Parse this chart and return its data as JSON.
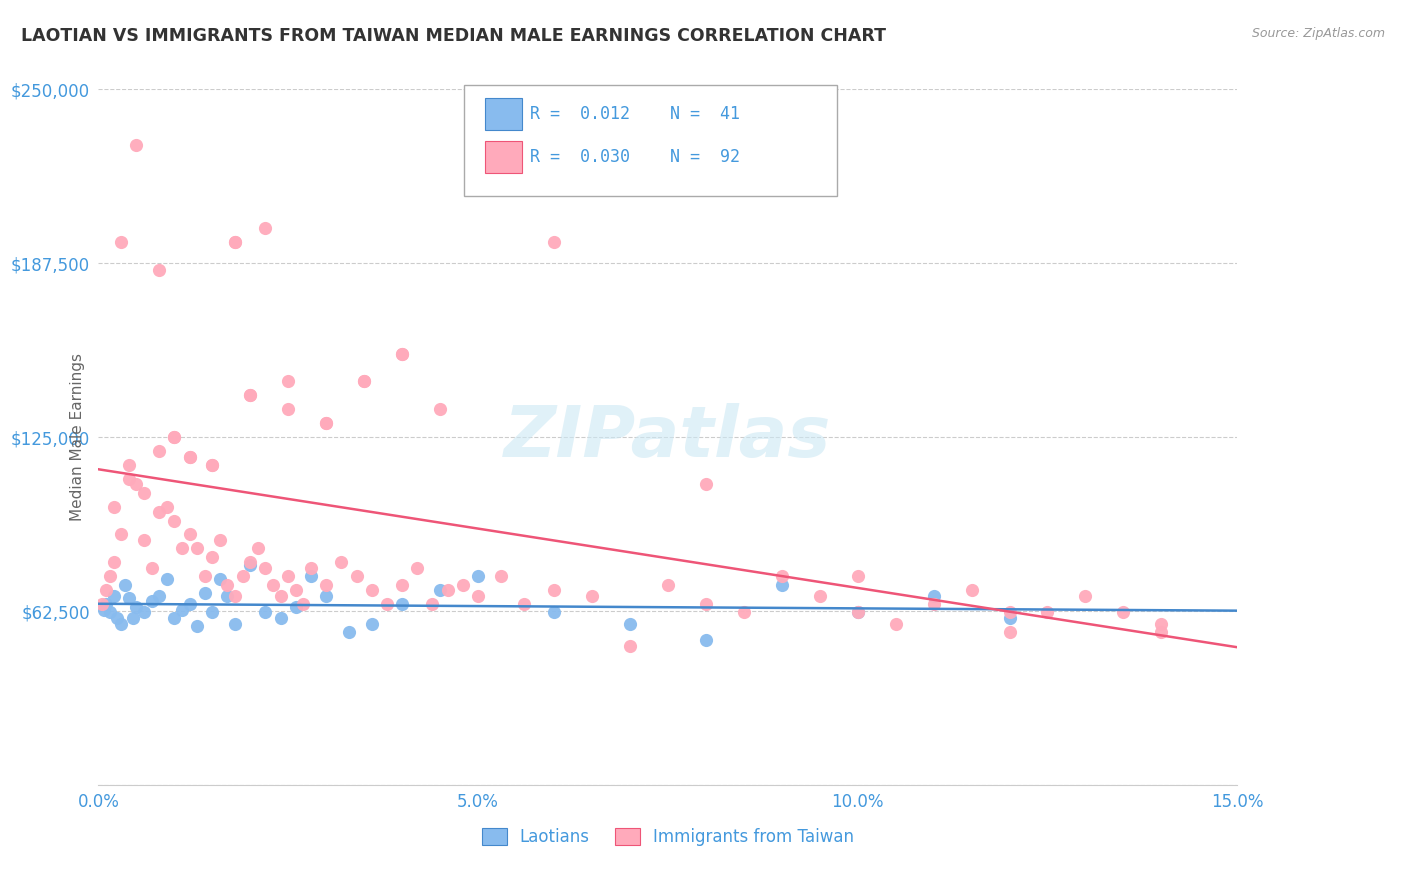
{
  "title": "LAOTIAN VS IMMIGRANTS FROM TAIWAN MEDIAN MALE EARNINGS CORRELATION CHART",
  "source": "Source: ZipAtlas.com",
  "ylabel": "Median Male Earnings",
  "xlim": [
    0.0,
    0.15
  ],
  "ylim": [
    0,
    250000
  ],
  "yticks": [
    0,
    62500,
    125000,
    187500,
    250000
  ],
  "ytick_labels": [
    "",
    "$62,500",
    "$125,000",
    "$187,500",
    "$250,000"
  ],
  "xticks": [
    0.0,
    0.05,
    0.1,
    0.15
  ],
  "xtick_labels": [
    "0.0%",
    "5.0%",
    "10.0%",
    "15.0%"
  ],
  "bg_color": "#ffffff",
  "grid_color": "#cccccc",
  "series": [
    {
      "name": "Laotians",
      "R": 0.012,
      "N": 41,
      "dot_color": "#88bbee",
      "line_color": "#4488cc",
      "scatter_x": [
        0.0008,
        0.001,
        0.0015,
        0.002,
        0.0025,
        0.003,
        0.0035,
        0.004,
        0.0045,
        0.005,
        0.006,
        0.007,
        0.008,
        0.009,
        0.01,
        0.011,
        0.012,
        0.013,
        0.014,
        0.015,
        0.016,
        0.017,
        0.018,
        0.02,
        0.022,
        0.024,
        0.026,
        0.028,
        0.03,
        0.033,
        0.036,
        0.04,
        0.045,
        0.05,
        0.06,
        0.07,
        0.08,
        0.09,
        0.1,
        0.11,
        0.12
      ],
      "scatter_y": [
        63000,
        65000,
        62000,
        68000,
        60000,
        58000,
        72000,
        67000,
        60000,
        64000,
        62000,
        66000,
        68000,
        74000,
        60000,
        63000,
        65000,
        57000,
        69000,
        62000,
        74000,
        68000,
        58000,
        79000,
        62000,
        60000,
        64000,
        75000,
        68000,
        55000,
        58000,
        65000,
        70000,
        75000,
        62000,
        58000,
        52000,
        72000,
        62000,
        68000,
        60000
      ]
    },
    {
      "name": "Immigrants from Taiwan",
      "R": 0.03,
      "N": 92,
      "dot_color": "#ffaabb",
      "line_color": "#ee5577",
      "scatter_x": [
        0.0005,
        0.001,
        0.0015,
        0.002,
        0.003,
        0.004,
        0.005,
        0.006,
        0.007,
        0.008,
        0.009,
        0.01,
        0.011,
        0.012,
        0.013,
        0.014,
        0.015,
        0.016,
        0.017,
        0.018,
        0.019,
        0.02,
        0.021,
        0.022,
        0.023,
        0.024,
        0.025,
        0.026,
        0.027,
        0.028,
        0.03,
        0.032,
        0.034,
        0.036,
        0.038,
        0.04,
        0.042,
        0.044,
        0.046,
        0.048,
        0.05,
        0.053,
        0.056,
        0.06,
        0.065,
        0.07,
        0.075,
        0.08,
        0.085,
        0.09,
        0.095,
        0.1,
        0.105,
        0.11,
        0.115,
        0.12,
        0.125,
        0.13,
        0.135,
        0.14,
        0.003,
        0.005,
        0.008,
        0.01,
        0.012,
        0.015,
        0.018,
        0.02,
        0.025,
        0.03,
        0.035,
        0.04,
        0.045,
        0.002,
        0.004,
        0.006,
        0.008,
        0.01,
        0.012,
        0.015,
        0.018,
        0.02,
        0.022,
        0.025,
        0.03,
        0.035,
        0.04,
        0.06,
        0.08,
        0.1,
        0.12,
        0.14
      ],
      "scatter_y": [
        65000,
        70000,
        75000,
        80000,
        90000,
        110000,
        108000,
        88000,
        78000,
        98000,
        100000,
        95000,
        85000,
        90000,
        85000,
        75000,
        82000,
        88000,
        72000,
        68000,
        75000,
        80000,
        85000,
        78000,
        72000,
        68000,
        75000,
        70000,
        65000,
        78000,
        72000,
        80000,
        75000,
        70000,
        65000,
        72000,
        78000,
        65000,
        70000,
        72000,
        68000,
        75000,
        65000,
        70000,
        68000,
        50000,
        72000,
        65000,
        62000,
        75000,
        68000,
        62000,
        58000,
        65000,
        70000,
        55000,
        62000,
        68000,
        62000,
        58000,
        195000,
        230000,
        185000,
        125000,
        118000,
        115000,
        195000,
        140000,
        135000,
        130000,
        145000,
        155000,
        135000,
        100000,
        115000,
        105000,
        120000,
        125000,
        118000,
        115000,
        195000,
        140000,
        200000,
        145000,
        130000,
        145000,
        155000,
        195000,
        108000,
        75000,
        62000,
        55000
      ]
    }
  ],
  "title_color": "#333333",
  "axis_label_color": "#666666",
  "tick_color": "#4499dd",
  "source_color": "#999999",
  "legend_label_color": "#4499dd"
}
